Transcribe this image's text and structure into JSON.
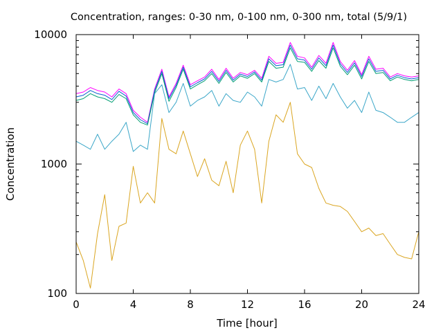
{
  "chart_data": {
    "type": "line",
    "title": "Concentration, ranges: 0-30 nm, 0-100 nm, 0-300 nm, total (5/9/1)",
    "xlabel": "Time [hour]",
    "ylabel": "Concentration",
    "xlim": [
      0,
      24
    ],
    "ylim": [
      100,
      10000
    ],
    "yscale": "log",
    "grid": false,
    "legend": "none",
    "x_ticks": [
      0,
      4,
      8,
      12,
      16,
      20,
      24
    ],
    "x_tick_labels": [
      "0",
      "4",
      "8",
      "12",
      "16",
      "20",
      "24"
    ],
    "y_ticks": [
      100,
      1000,
      10000
    ],
    "y_tick_labels": [
      "100",
      "1000",
      "10000"
    ],
    "series": [
      {
        "color": "#ff00ff",
        "x": [
          0,
          0.5,
          1,
          1.5,
          2,
          2.5,
          3,
          3.5,
          4,
          4.5,
          5,
          5.5,
          6,
          6.5,
          7,
          7.5,
          8,
          8.5,
          9,
          9.5,
          10,
          10.5,
          11,
          11.5,
          12,
          12.5,
          13,
          13.5,
          14,
          14.5,
          15,
          15.5,
          16,
          16.5,
          17,
          17.5,
          18,
          18.5,
          19,
          19.5,
          20,
          20.5,
          21,
          21.5,
          22,
          22.5,
          23,
          23.5,
          24
        ],
        "y": [
          3500,
          3600,
          3900,
          3700,
          3600,
          3300,
          3800,
          3500,
          2600,
          2300,
          2100,
          3800,
          5400,
          3300,
          4200,
          5800,
          4100,
          4400,
          4700,
          5400,
          4500,
          5500,
          4600,
          5100,
          4900,
          5300,
          4600,
          6800,
          6000,
          6100,
          8700,
          6800,
          6600,
          5600,
          6900,
          6000,
          8700,
          6200,
          5300,
          6300,
          4900,
          6800,
          5400,
          5500,
          4700,
          5000,
          4800,
          4700,
          4800
        ]
      },
      {
        "color": "#0a5fd0",
        "x": [
          0,
          0.5,
          1,
          1.5,
          2,
          2.5,
          3,
          3.5,
          4,
          4.5,
          5,
          5.5,
          6,
          6.5,
          7,
          7.5,
          8,
          8.5,
          9,
          9.5,
          10,
          10.5,
          11,
          11.5,
          12,
          12.5,
          13,
          13.5,
          14,
          14.5,
          15,
          15.5,
          16,
          16.5,
          17,
          17.5,
          18,
          18.5,
          19,
          19.5,
          20,
          20.5,
          21,
          21.5,
          22,
          22.5,
          23,
          23.5,
          24
        ],
        "y": [
          3300,
          3400,
          3700,
          3500,
          3400,
          3150,
          3650,
          3350,
          2500,
          2200,
          2050,
          3700,
          5200,
          3200,
          4050,
          5600,
          3950,
          4250,
          4550,
          5200,
          4350,
          5300,
          4450,
          4950,
          4750,
          5150,
          4450,
          6500,
          5750,
          5850,
          8300,
          6500,
          6350,
          5400,
          6600,
          5750,
          8300,
          5950,
          5100,
          6050,
          4750,
          6500,
          5200,
          5300,
          4550,
          4850,
          4650,
          4550,
          4650
        ]
      },
      {
        "color": "#009e73",
        "x": [
          0,
          0.5,
          1,
          1.5,
          2,
          2.5,
          3,
          3.5,
          4,
          4.5,
          5,
          5.5,
          6,
          6.5,
          7,
          7.5,
          8,
          8.5,
          9,
          9.5,
          10,
          10.5,
          11,
          11.5,
          12,
          12.5,
          13,
          13.5,
          14,
          14.5,
          15,
          15.5,
          16,
          16.5,
          17,
          17.5,
          18,
          18.5,
          19,
          19.5,
          20,
          20.5,
          21,
          21.5,
          22,
          22.5,
          23,
          23.5,
          24
        ],
        "y": [
          3100,
          3200,
          3500,
          3300,
          3200,
          3000,
          3450,
          3200,
          2400,
          2100,
          2000,
          3550,
          5000,
          3050,
          3900,
          5400,
          3800,
          4100,
          4400,
          5000,
          4200,
          5100,
          4300,
          4800,
          4600,
          5000,
          4300,
          6200,
          5500,
          5600,
          7900,
          6200,
          6100,
          5200,
          6300,
          5500,
          7900,
          5700,
          4900,
          5800,
          4550,
          6200,
          5000,
          5100,
          4400,
          4700,
          4500,
          4400,
          4500
        ]
      },
      {
        "color": "#3aa6c8",
        "x": [
          0,
          0.5,
          1,
          1.5,
          2,
          2.5,
          3,
          3.5,
          4,
          4.5,
          5,
          5.5,
          6,
          6.5,
          7,
          7.5,
          8,
          8.5,
          9,
          9.5,
          10,
          10.5,
          11,
          11.5,
          12,
          12.5,
          13,
          13.5,
          14,
          14.5,
          15,
          15.5,
          16,
          16.5,
          17,
          17.5,
          18,
          18.5,
          19,
          19.5,
          20,
          20.5,
          21,
          21.5,
          22,
          22.5,
          23,
          23.5,
          24
        ],
        "y": [
          1500,
          1400,
          1300,
          1700,
          1300,
          1500,
          1700,
          2100,
          1250,
          1400,
          1300,
          3500,
          4100,
          2500,
          3000,
          4200,
          2800,
          3100,
          3300,
          3700,
          2800,
          3500,
          3100,
          3000,
          3600,
          3300,
          2800,
          4500,
          4300,
          4500,
          5900,
          3800,
          3900,
          3100,
          4000,
          3200,
          4200,
          3300,
          2700,
          3100,
          2500,
          3600,
          2600,
          2500,
          2300,
          2100,
          2100,
          2300,
          2500
        ]
      },
      {
        "color": "#daa520",
        "x": [
          0,
          0.5,
          1,
          1.5,
          2,
          2.5,
          3,
          3.5,
          4,
          4.5,
          5,
          5.5,
          6,
          6.5,
          7,
          7.5,
          8,
          8.5,
          9,
          9.5,
          10,
          10.5,
          11,
          11.5,
          12,
          12.5,
          13,
          13.5,
          14,
          14.5,
          15,
          15.5,
          16,
          16.5,
          17,
          17.5,
          18,
          18.5,
          19,
          19.5,
          20,
          20.5,
          21,
          21.5,
          22,
          22.5,
          23,
          23.5,
          24
        ],
        "y": [
          250,
          180,
          110,
          290,
          580,
          180,
          330,
          350,
          960,
          500,
          600,
          500,
          2250,
          1300,
          1200,
          1800,
          1200,
          800,
          1100,
          750,
          680,
          1050,
          600,
          1400,
          1800,
          1300,
          500,
          1500,
          2400,
          2100,
          3000,
          1200,
          1000,
          940,
          650,
          500,
          480,
          470,
          430,
          360,
          300,
          320,
          280,
          290,
          240,
          200,
          190,
          185,
          300
        ]
      }
    ]
  }
}
